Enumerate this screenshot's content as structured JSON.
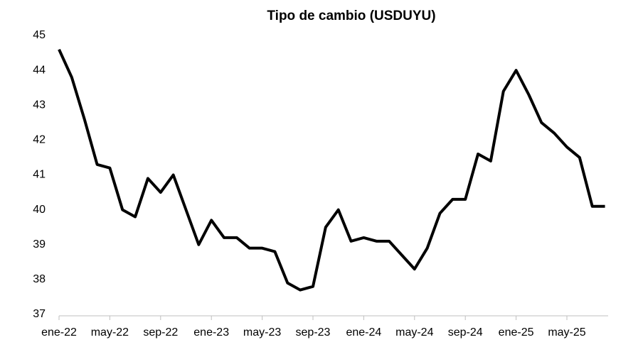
{
  "chart_data": {
    "type": "line",
    "title": "Tipo de cambio (USDUYU)",
    "categories": [
      "ene-22",
      null,
      null,
      null,
      "may-22",
      null,
      null,
      null,
      "sep-22",
      null,
      null,
      null,
      "ene-23",
      null,
      null,
      null,
      "may-23",
      null,
      null,
      null,
      "sep-23",
      null,
      null,
      null,
      "ene-24",
      null,
      null,
      null,
      "may-24",
      null,
      null,
      null,
      "sep-24",
      null,
      null,
      null,
      "ene-25",
      null,
      null,
      null,
      "may-25",
      null,
      null,
      null
    ],
    "values": [
      44.6,
      43.8,
      42.6,
      41.3,
      41.2,
      40.0,
      39.8,
      40.9,
      40.5,
      41.0,
      40.0,
      39.0,
      39.7,
      39.2,
      39.2,
      38.9,
      38.9,
      38.8,
      37.9,
      37.7,
      37.8,
      39.5,
      40.0,
      39.1,
      39.2,
      39.1,
      39.1,
      38.7,
      38.3,
      38.9,
      39.9,
      40.3,
      40.3,
      41.6,
      41.4,
      43.4,
      44.0,
      43.3,
      42.5,
      42.2,
      41.8,
      41.5,
      40.1,
      40.1
    ],
    "color": "#000000",
    "ylim": [
      37,
      45
    ],
    "yticks": [
      37,
      38,
      39,
      40,
      41,
      42,
      43,
      44,
      45
    ],
    "grid": false
  }
}
